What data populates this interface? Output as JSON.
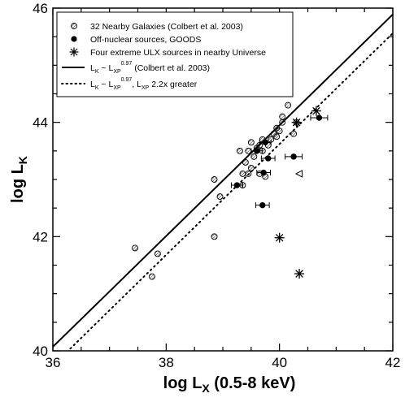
{
  "chart_data": {
    "type": "scatter",
    "xlabel": "log L",
    "xlabel_sub": "X",
    "xlabel_suffix": " (0.5-8 keV)",
    "ylabel": "log L",
    "ylabel_sub": "K",
    "xlim": [
      36,
      42
    ],
    "ylim": [
      40,
      46
    ],
    "x_ticks": [
      "36",
      "38",
      "40",
      "42"
    ],
    "y_ticks": [
      "40",
      "42",
      "44",
      "46"
    ],
    "grid": false,
    "legend_position": "top-left",
    "series": [
      {
        "name": "32 Nearby Galaxies (Colbert et al. 2003)",
        "marker": "hatched-circle",
        "points": [
          [
            37.45,
            41.8
          ],
          [
            37.75,
            41.3
          ],
          [
            37.85,
            41.7
          ],
          [
            38.85,
            42.0
          ],
          [
            38.85,
            43.0
          ],
          [
            38.95,
            42.7
          ],
          [
            39.3,
            43.5
          ],
          [
            39.35,
            43.1
          ],
          [
            39.4,
            43.3
          ],
          [
            39.45,
            43.1
          ],
          [
            39.5,
            43.2
          ],
          [
            39.45,
            43.5
          ],
          [
            39.5,
            43.65
          ],
          [
            39.55,
            43.4
          ],
          [
            39.6,
            43.55
          ],
          [
            39.65,
            43.6
          ],
          [
            39.7,
            43.5
          ],
          [
            39.7,
            43.7
          ],
          [
            39.65,
            43.1
          ],
          [
            39.75,
            43.05
          ],
          [
            39.8,
            43.6
          ],
          [
            39.85,
            43.7
          ],
          [
            39.9,
            43.8
          ],
          [
            39.95,
            43.75
          ],
          [
            39.95,
            43.9
          ],
          [
            40.0,
            43.85
          ],
          [
            40.05,
            44.0
          ],
          [
            40.05,
            44.1
          ],
          [
            40.15,
            44.3
          ],
          [
            40.25,
            43.8
          ],
          [
            40.3,
            44.0
          ],
          [
            39.35,
            42.9
          ]
        ]
      },
      {
        "name": "Off-nuclear sources, GOODS",
        "marker": "filled-circle",
        "points": [
          [
            39.25,
            42.9
          ],
          [
            39.6,
            43.5
          ],
          [
            39.7,
            42.55
          ],
          [
            39.72,
            43.12
          ],
          [
            39.75,
            43.65
          ],
          [
            39.8,
            43.37
          ],
          [
            40.25,
            43.4
          ],
          [
            40.7,
            44.08
          ]
        ],
        "x_error": [
          0.1,
          0.1,
          0.12,
          0.12,
          0.1,
          0.12,
          0.15,
          0.15
        ]
      },
      {
        "name": "Four extreme ULX sources in nearby Universe",
        "marker": "asterisk",
        "points": [
          [
            40.0,
            41.98
          ],
          [
            40.35,
            41.35
          ],
          [
            40.3,
            44.0
          ],
          [
            40.65,
            44.2
          ]
        ]
      },
      {
        "name": "upper-limit",
        "marker": "left-triangle",
        "points": [
          [
            40.35,
            43.1
          ]
        ]
      }
    ],
    "lines": [
      {
        "name": "L_K ~ L_XP^0.97 (Colbert et al. 2003)",
        "style": "solid",
        "x": [
          36,
          42
        ],
        "y": [
          40.07,
          45.89
        ]
      },
      {
        "name": "L_K ~ L_XP^0.97, L_XP 2.2x greater",
        "style": "dotted",
        "x": [
          36,
          42
        ],
        "y": [
          39.74,
          45.56
        ]
      }
    ]
  },
  "legend": {
    "items": [
      {
        "text": "32 Nearby Galaxies (Colbert et al. 2003)"
      },
      {
        "text": "Off-nuclear sources, GOODS"
      },
      {
        "text": "Four extreme ULX sources in nearby Universe"
      },
      {
        "text_a": "L",
        "sub_a": "K",
        "text_b": " ~ L",
        "sub_b": "XP",
        "sup_b": "0.97",
        "text_c": " (Colbert et al. 2003)"
      },
      {
        "text_a": "L",
        "sub_a": "K",
        "text_b": " ~ L",
        "sub_b": "XP",
        "sup_b": "0.97",
        "text_c": ",  L",
        "sub_c": "XP",
        "text_d": " 2.2x greater"
      }
    ]
  }
}
